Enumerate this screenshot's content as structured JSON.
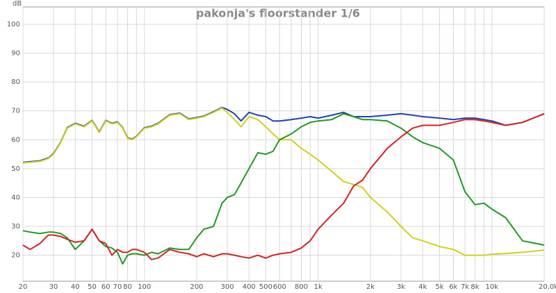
{
  "chart_data": {
    "type": "line",
    "title": "pakonja's floorstander 1/6",
    "y_label": "dB",
    "xscale": "log",
    "grid": true,
    "xlim": [
      20,
      20000
    ],
    "ylim": [
      11,
      106
    ],
    "yticks": [
      20,
      30,
      40,
      50,
      60,
      70,
      80,
      90,
      100
    ],
    "xticks": [
      20,
      30,
      40,
      50,
      60,
      70,
      80,
      100,
      200,
      300,
      400,
      500,
      600,
      800,
      {
        "value": 1000,
        "label": "1k"
      },
      {
        "value": 2000,
        "label": "2k"
      },
      {
        "value": 3000,
        "label": "3k"
      },
      {
        "value": 4000,
        "label": "4k"
      },
      {
        "value": 5000,
        "label": "5k"
      },
      {
        "value": 6000,
        "label": "6k"
      },
      {
        "value": 7000,
        "label": "7k"
      },
      {
        "value": 8000,
        "label": "8k"
      },
      {
        "value": 10000,
        "label": "10k"
      },
      {
        "value": 20000,
        "label": "20,0k Hz"
      }
    ],
    "xminor": [
      90,
      700,
      900,
      9000
    ],
    "x": [
      20,
      22,
      25,
      28,
      30,
      33,
      36,
      40,
      45,
      50,
      55,
      60,
      65,
      70,
      75,
      80,
      85,
      90,
      100,
      110,
      120,
      140,
      160,
      180,
      200,
      220,
      250,
      280,
      300,
      330,
      360,
      400,
      450,
      500,
      550,
      600,
      700,
      800,
      900,
      1000,
      1200,
      1400,
      1600,
      1800,
      2000,
      2500,
      3000,
      3500,
      4000,
      5000,
      6000,
      7000,
      8000,
      9000,
      10000,
      12000,
      15000,
      20000
    ],
    "series": [
      {
        "color": "#2040b0",
        "values": [
          52.2,
          52.4,
          52.7,
          53.7,
          55.2,
          59.2,
          64.2,
          65.7,
          64.7,
          66.7,
          62.7,
          66.7,
          65.7,
          66.2,
          64.2,
          60.7,
          60.2,
          61.2,
          64.2,
          64.7,
          65.7,
          68.7,
          69.2,
          67.2,
          67.7,
          68.2,
          69.7,
          71.2,
          70.5,
          69,
          66.5,
          69.5,
          68.5,
          68,
          66.5,
          66.5,
          67,
          67.5,
          68,
          67.5,
          68.5,
          69.5,
          68,
          68,
          68,
          68.5,
          69,
          68.5,
          68,
          67.5,
          67,
          67.5,
          67.5,
          67,
          66.5,
          65,
          66,
          69
        ]
      },
      {
        "color": "#d2d01a",
        "values": [
          52,
          52.2,
          52.5,
          53.5,
          55,
          59,
          64,
          65.5,
          64.5,
          66.5,
          62.5,
          66.5,
          65.5,
          66,
          64,
          60.5,
          60,
          61,
          64,
          64.5,
          65.5,
          68.5,
          69,
          67,
          67.5,
          68,
          69.5,
          71,
          69.5,
          67,
          64.5,
          68,
          67,
          64.5,
          62,
          60,
          60,
          57,
          55,
          53,
          49,
          45.5,
          44.5,
          43.5,
          40,
          35,
          30,
          26,
          25,
          23,
          22,
          20,
          20,
          20,
          20.3,
          20.6,
          21,
          21.8
        ]
      },
      {
        "color": "#1e9a22",
        "values": [
          28.5,
          28,
          27.5,
          28,
          28,
          27.5,
          26,
          22,
          25,
          29,
          25,
          23,
          22.5,
          21,
          17,
          20,
          20.5,
          20.5,
          20,
          21,
          20.5,
          22.5,
          22,
          22,
          26,
          29,
          30,
          38,
          40,
          41,
          45,
          50,
          55.5,
          55,
          56,
          60,
          62,
          64.5,
          66,
          66.5,
          67,
          69,
          68,
          67,
          67,
          66.5,
          64,
          61,
          59,
          57,
          53,
          42,
          37.5,
          38,
          36,
          33,
          25,
          23.5
        ]
      },
      {
        "color": "#d42222",
        "values": [
          23.5,
          22,
          24,
          27,
          27,
          26.5,
          25.5,
          24.5,
          25,
          29,
          25,
          24,
          20,
          22,
          21,
          21,
          22,
          22,
          21,
          18.5,
          19,
          22,
          21,
          20.5,
          19.5,
          20.5,
          19.5,
          20.5,
          20.5,
          20,
          19.5,
          19,
          20,
          19,
          20,
          20.5,
          21,
          22.5,
          25,
          29,
          34,
          38,
          44,
          46,
          50,
          57,
          61,
          64,
          65,
          65,
          66,
          67,
          67,
          66.5,
          66,
          65,
          66,
          69
        ]
      }
    ]
  }
}
